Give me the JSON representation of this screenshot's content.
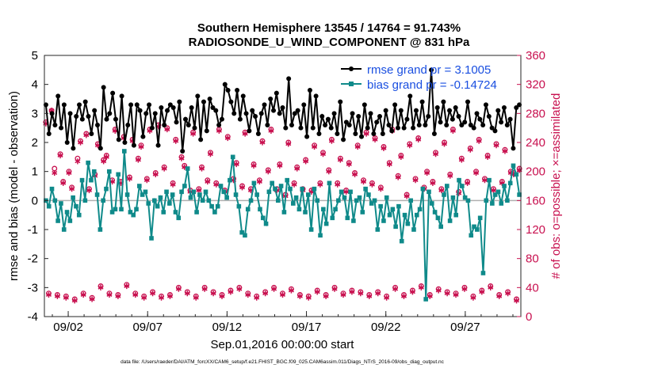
{
  "chart_data": {
    "type": "line",
    "title": "Southern Hemisphere 13545 / 14764 = 91.743%",
    "subtitle": "RADIOSONDE_U_WIND_COMPONENT @ 831 hPa",
    "ylabel": "rmse and bias (model - observation)",
    "y2label": "# of obs: o=possible; ×=assimilated",
    "xlabel": "Sep.01,2016 00:00:00 start",
    "footnote": "data file: /Users/raeder/DAI/ATM_forcXX/CAM6_setup/f.e21.FHIST_BGC.f09_025.CAM6assim.011/Diags_NTrS_2016-09/obs_diag_output.nc",
    "ylim": [
      -4,
      5
    ],
    "y2lim": [
      0,
      360
    ],
    "xlim": [
      0.5,
      30.5
    ],
    "yticks": [
      "-4",
      "-3",
      "-2",
      "-1",
      "0",
      "1",
      "2",
      "3",
      "4",
      "5"
    ],
    "y2ticks": [
      "0",
      "40",
      "80",
      "120",
      "160",
      "200",
      "240",
      "280",
      "320",
      "360"
    ],
    "xticks": [
      {
        "day": 2,
        "label": "09/02"
      },
      {
        "day": 7,
        "label": "09/07"
      },
      {
        "day": 12,
        "label": "09/12"
      },
      {
        "day": 17,
        "label": "09/17"
      },
      {
        "day": 22,
        "label": "09/22"
      },
      {
        "day": 27,
        "label": "09/27"
      }
    ],
    "series": [
      {
        "name": "rmse",
        "legend": "rmse grand pr = 3.1005",
        "color": "#000000",
        "marker": "dot",
        "axis": "left",
        "values": [
          3.3,
          2.3,
          3.0,
          2.6,
          3.6,
          2.5,
          3.3,
          2.0,
          3.0,
          1.8,
          2.9,
          3.3,
          2.8,
          3.4,
          2.9,
          2.3,
          3.1,
          2.6,
          1.8,
          3.9,
          2.8,
          3.0,
          3.7,
          2.8,
          2.1,
          3.6,
          2.0,
          2.6,
          3.3,
          1.9,
          3.3,
          3.1,
          2.2,
          3.0,
          3.3,
          2.5,
          3.0,
          1.9,
          3.2,
          2.6,
          3.1,
          3.3,
          3.2,
          2.7,
          3.4,
          1.7,
          2.8,
          2.6,
          3.2,
          2.5,
          3.6,
          2.1,
          3.4,
          2.4,
          3.5,
          3.2,
          3.1,
          2.6,
          2.8,
          4.0,
          3.8,
          3.4,
          3.0,
          3.8,
          2.8,
          3.6,
          3.0,
          2.4,
          3.1,
          2.9,
          2.3,
          3.0,
          3.3,
          2.6,
          3.5,
          3.1,
          3.7,
          3.0,
          3.2,
          2.5,
          4.2,
          2.6,
          3.0,
          3.1,
          2.5,
          3.3,
          2.2,
          3.8,
          2.5,
          3.6,
          2.3,
          2.9,
          2.6,
          2.8,
          2.5,
          3.0,
          2.3,
          3.4,
          2.1,
          2.7,
          2.6,
          3.0,
          2.3,
          2.9,
          2.2,
          3.3,
          2.5,
          3.0,
          2.3,
          2.7,
          2.9,
          2.3,
          3.1,
          2.6,
          2.4,
          3.3,
          2.5,
          3.1,
          2.5,
          2.8,
          3.6,
          2.5,
          3.1,
          2.6,
          3.4,
          2.6,
          2.9,
          4.5,
          2.3,
          3.2,
          2.7,
          3.4,
          2.6,
          3.1,
          2.8,
          3.2,
          2.9,
          2.6,
          2.7,
          3.4,
          2.6,
          2.5,
          3.0,
          2.8,
          2.6,
          3.3,
          2.9,
          2.5,
          2.4,
          3.1,
          2.7,
          3.2,
          2.6,
          2.8,
          1.8,
          3.2,
          3.3
        ]
      },
      {
        "name": "bias",
        "legend": "bias grand pr = -0.14724",
        "color": "#0f8a8a",
        "marker": "square",
        "axis": "left",
        "values": [
          0.0,
          -0.2,
          0.4,
          0.0,
          -0.7,
          -0.1,
          -1.0,
          -0.4,
          -0.7,
          0.1,
          -0.2,
          -0.5,
          0.7,
          0.0,
          1.3,
          0.7,
          1.0,
          0.2,
          -1.0,
          0.0,
          0.4,
          1.0,
          -0.4,
          -0.3,
          0.9,
          -0.3,
          1.7,
          0.2,
          -0.4,
          -0.5,
          -0.3,
          0.5,
          0.2,
          0.3,
          -0.1,
          -1.3,
          0.0,
          -0.2,
          0.1,
          -0.4,
          0.3,
          -0.1,
          0.2,
          -0.4,
          -0.6,
          0.3,
          0.5,
          1.1,
          0.1,
          0.3,
          -0.4,
          0.2,
          0.0,
          0.3,
          0.0,
          -0.2,
          -0.4,
          -0.2,
          0.5,
          0.3,
          0.1,
          0.7,
          1.5,
          0.2,
          -0.2,
          -1.1,
          -1.2,
          -0.3,
          0.0,
          0.6,
          0.2,
          -0.3,
          -0.6,
          -0.8,
          0.3,
          0.6,
          0.4,
          0.0,
          0.5,
          -0.4,
          0.7,
          0.4,
          -0.1,
          0.1,
          -0.3,
          0.4,
          -0.4,
          0.2,
          -1.0,
          0.4,
          0.0,
          -1.2,
          -0.3,
          -0.8,
          0.6,
          -0.6,
          -0.3,
          0.0,
          0.3,
          0.1,
          -0.6,
          0.3,
          -0.7,
          0.0,
          0.1,
          -0.4,
          0.4,
          0.2,
          -0.1,
          0.0,
          -1.0,
          -0.2,
          -0.7,
          0.1,
          -0.5,
          -0.3,
          -0.9,
          -0.2,
          -1.4,
          -0.5,
          -0.8,
          0.0,
          -1.0,
          -0.5,
          -0.3,
          0.4,
          -3.4,
          0.3,
          -0.1,
          -0.4,
          -0.6,
          -0.9,
          0.2,
          0.5,
          -0.7,
          0.1,
          -0.5,
          0.7,
          0.5,
          0.1,
          0.0,
          -1.2,
          -0.9,
          -1.0,
          -0.6,
          -2.5,
          0.0,
          0.7,
          -0.1,
          0.2,
          0.3,
          -0.1,
          0.5,
          0.0,
          0.6,
          1.2,
          0.9,
          0.2
        ]
      },
      {
        "name": "possible",
        "legend": "possible",
        "color": "#c8104f",
        "marker": "circle",
        "axis": "right",
        "values": [
          268,
          32,
          284,
          204,
          30,
          224,
          186,
          28,
          200,
          178,
          24,
          218,
          242,
          32,
          252,
          176,
          26,
          196,
          238,
          42,
          216,
          222,
          32,
          188,
          258,
          30,
          186,
          248,
          44,
          192,
          244,
          32,
          218,
          236,
          28,
          190,
          258,
          34,
          198,
          264,
          28,
          206,
          260,
          30,
          184,
          244,
          40,
          220,
          208,
          34,
          174,
          254,
          28,
          176,
          206,
          40,
          188,
          226,
          34,
          184,
          258,
          30,
          174,
          248,
          36,
          190,
          212,
          40,
          180,
          254,
          32,
          176,
          210,
          28,
          188,
          242,
          34,
          202,
          258,
          40,
          176,
          210,
          32,
          168,
          240,
          38,
          184,
          206,
          30,
          176,
          216,
          28,
          174,
          236,
          36,
          184,
          226,
          30,
          202,
          244,
          40,
          184,
          218,
          32,
          174,
          212,
          36,
          198,
          236,
          34,
          188,
          254,
          30,
          184,
          246,
          34,
          178,
          234,
          28,
          212,
          258,
          40,
          194,
          222,
          30,
          168,
          238,
          36,
          190,
          246,
          42,
          178,
          200,
          30,
          186,
          226,
          38,
          176,
          240,
          34,
          196,
          258,
          32,
          172,
          218,
          40,
          186,
          232,
          28,
          200,
          244,
          36,
          190,
          222,
          42,
          176,
          238,
          30,
          186,
          230,
          34,
          200,
          198,
          24,
          204
        ]
      },
      {
        "name": "assimilated",
        "legend": "assimilated",
        "color": "#c8104f",
        "marker": "asterisk",
        "axis": "right",
        "values": [
          266,
          30,
          284,
          198,
          28,
          222,
          184,
          26,
          198,
          176,
          22,
          214,
          240,
          30,
          250,
          174,
          24,
          194,
          236,
          40,
          214,
          220,
          30,
          186,
          256,
          28,
          184,
          246,
          42,
          190,
          242,
          30,
          216,
          234,
          26,
          188,
          256,
          32,
          196,
          262,
          26,
          204,
          258,
          28,
          182,
          242,
          38,
          218,
          206,
          32,
          172,
          252,
          26,
          174,
          204,
          38,
          186,
          224,
          32,
          182,
          256,
          28,
          172,
          246,
          34,
          188,
          210,
          38,
          178,
          252,
          30,
          174,
          208,
          26,
          186,
          240,
          32,
          200,
          256,
          38,
          174,
          208,
          30,
          166,
          238,
          36,
          182,
          204,
          28,
          174,
          214,
          26,
          172,
          234,
          34,
          182,
          224,
          28,
          200,
          242,
          38,
          182,
          216,
          30,
          172,
          210,
          34,
          196,
          234,
          32,
          186,
          252,
          28,
          182,
          244,
          32,
          176,
          232,
          26,
          210,
          256,
          38,
          192,
          220,
          28,
          166,
          236,
          34,
          188,
          244,
          40,
          176,
          198,
          28,
          184,
          224,
          36,
          174,
          238,
          32,
          194,
          256,
          30,
          170,
          216,
          38,
          184,
          230,
          26,
          198,
          242,
          34,
          188,
          220,
          40,
          174,
          236,
          28,
          184,
          228,
          32,
          198,
          196,
          22,
          202
        ]
      }
    ]
  }
}
